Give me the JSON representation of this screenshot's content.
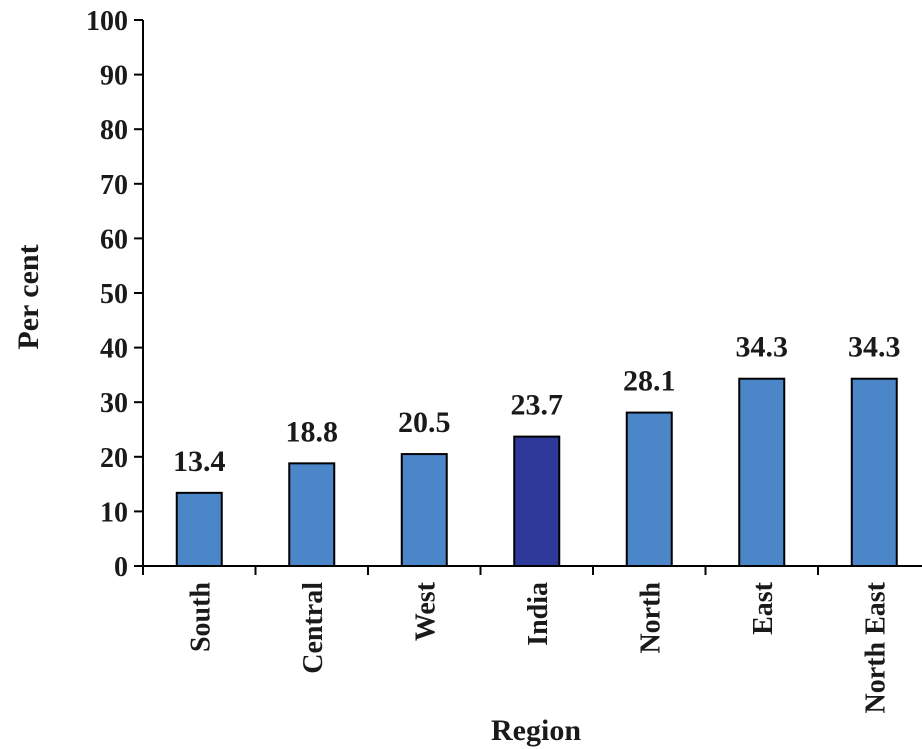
{
  "chart_data": {
    "type": "bar",
    "title": "",
    "xlabel": "Region",
    "ylabel": "Per cent",
    "ylim": [
      0,
      100
    ],
    "yticks": [
      0,
      10,
      20,
      30,
      40,
      50,
      60,
      70,
      80,
      90,
      100
    ],
    "grid": false,
    "legend": "none",
    "categories": [
      "South",
      "Central",
      "West",
      "India",
      "North",
      "East",
      "North East"
    ],
    "values": [
      13.4,
      18.8,
      20.5,
      23.7,
      28.1,
      34.3,
      34.3
    ],
    "value_labels": [
      "13.4",
      "18.8",
      "20.5",
      "23.7",
      "28.1",
      "34.3",
      "34.3"
    ],
    "colors": {
      "default_bar": "#4a86c8",
      "highlight_bar": "#2e3a9a",
      "highlight_category": "India",
      "axis": "#000000"
    }
  }
}
